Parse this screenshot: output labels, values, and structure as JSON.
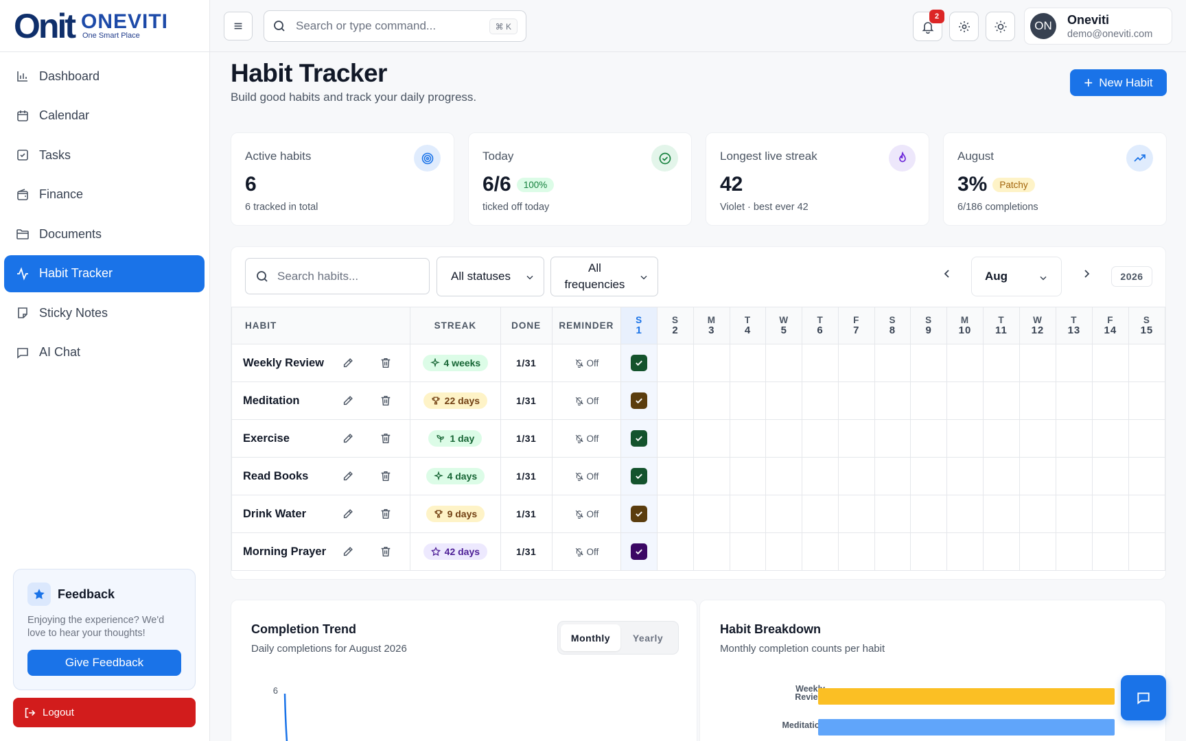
{
  "brand": {
    "logo_mark": "On",
    "logo_mark_it": "it",
    "name": "ONEVITI",
    "tagline": "One Smart Place"
  },
  "sidebar": {
    "items": [
      {
        "label": "Dashboard",
        "icon": "bar-chart-icon"
      },
      {
        "label": "Calendar",
        "icon": "calendar-icon"
      },
      {
        "label": "Tasks",
        "icon": "checkbox-icon"
      },
      {
        "label": "Finance",
        "icon": "wallet-icon"
      },
      {
        "label": "Documents",
        "icon": "folder-icon"
      },
      {
        "label": "Habit Tracker",
        "icon": "activity-icon",
        "active": true
      },
      {
        "label": "Sticky Notes",
        "icon": "sticky-note-icon"
      },
      {
        "label": "AI Chat",
        "icon": "chat-icon"
      }
    ],
    "feedback": {
      "title": "Feedback",
      "text": "Enjoying the experience? We'd love to hear your thoughts!",
      "button": "Give Feedback"
    },
    "logout": "Logout"
  },
  "header": {
    "search_placeholder": "Search or type command...",
    "shortcut": "⌘ K",
    "notifications_count": "2",
    "user": {
      "initials": "ON",
      "name": "Oneviti",
      "email": "demo@oneviti.com"
    }
  },
  "page": {
    "title": "Habit Tracker",
    "subtitle": "Build good habits and track your daily progress.",
    "new_button": "New Habit"
  },
  "stats": [
    {
      "label": "Active habits",
      "value": "6",
      "pill": "",
      "sub": "6 tracked in total"
    },
    {
      "label": "Today",
      "value": "6/6",
      "pill": "100%",
      "sub": "ticked off today"
    },
    {
      "label": "Longest live streak",
      "value": "42",
      "pill": "",
      "sub": "Violet · best ever 42"
    },
    {
      "label": "August",
      "value": "3%",
      "pill": "Patchy",
      "sub": "6/186 completions"
    }
  ],
  "filters": {
    "search_placeholder": "Search habits...",
    "status": "All statuses",
    "frequency": "All frequencies",
    "month": "Aug",
    "year": "2026"
  },
  "table": {
    "headers": {
      "habit": "HABIT",
      "streak": "STREAK",
      "done": "DONE",
      "reminder": "REMINDER"
    },
    "days": [
      {
        "w": "S",
        "d": "1"
      },
      {
        "w": "S",
        "d": "2"
      },
      {
        "w": "M",
        "d": "3"
      },
      {
        "w": "T",
        "d": "4"
      },
      {
        "w": "W",
        "d": "5"
      },
      {
        "w": "T",
        "d": "6"
      },
      {
        "w": "F",
        "d": "7"
      },
      {
        "w": "S",
        "d": "8"
      },
      {
        "w": "S",
        "d": "9"
      },
      {
        "w": "M",
        "d": "10"
      },
      {
        "w": "T",
        "d": "11"
      },
      {
        "w": "W",
        "d": "12"
      },
      {
        "w": "T",
        "d": "13"
      },
      {
        "w": "F",
        "d": "14"
      },
      {
        "w": "S",
        "d": "15"
      }
    ],
    "rows": [
      {
        "name": "Weekly Review",
        "streak": "4 weeks",
        "streak_icon": "sparkle-icon",
        "pill_bg": "#dcfce7",
        "pill_fg": "#166534",
        "done": "1/31",
        "reminder": "Off",
        "check_color": "#14532d"
      },
      {
        "name": "Meditation",
        "streak": "22 days",
        "streak_icon": "trophy-icon",
        "pill_bg": "#fef3c7",
        "pill_fg": "#713f12",
        "done": "1/31",
        "reminder": "Off",
        "check_color": "#5b3d0e"
      },
      {
        "name": "Exercise",
        "streak": "1 day",
        "streak_icon": "sprout-icon",
        "pill_bg": "#dcfce7",
        "pill_fg": "#166534",
        "done": "1/31",
        "reminder": "Off",
        "check_color": "#14532d"
      },
      {
        "name": "Read Books",
        "streak": "4 days",
        "streak_icon": "sparkle-icon",
        "pill_bg": "#dcfce7",
        "pill_fg": "#166534",
        "done": "1/31",
        "reminder": "Off",
        "check_color": "#14532d"
      },
      {
        "name": "Drink Water",
        "streak": "9 days",
        "streak_icon": "trophy-icon",
        "pill_bg": "#fef3c7",
        "pill_fg": "#713f12",
        "done": "1/31",
        "reminder": "Off",
        "check_color": "#5b3d0e"
      },
      {
        "name": "Morning Prayer",
        "streak": "42 days",
        "streak_icon": "star-icon",
        "pill_bg": "#ede9fe",
        "pill_fg": "#4c1d95",
        "done": "1/31",
        "reminder": "Off",
        "check_color": "#3b0764"
      }
    ]
  },
  "trend": {
    "title": "Completion Trend",
    "subtitle": "Daily completions for August 2026",
    "tab_monthly": "Monthly",
    "tab_yearly": "Yearly"
  },
  "breakdown": {
    "title": "Habit Breakdown",
    "subtitle": "Monthly completion counts per habit"
  },
  "chart_data": [
    {
      "type": "line",
      "title": "Completion Trend",
      "x": [
        "1"
      ],
      "series": [
        {
          "values": [
            6
          ]
        }
      ],
      "yticks": [
        "6"
      ]
    },
    {
      "type": "bar",
      "title": "Habit Breakdown",
      "categories": [
        "Weekly Revie...",
        "Meditation"
      ],
      "values": [
        1,
        1
      ],
      "colors": [
        "#fbbf24",
        "#60a5fa"
      ]
    }
  ]
}
